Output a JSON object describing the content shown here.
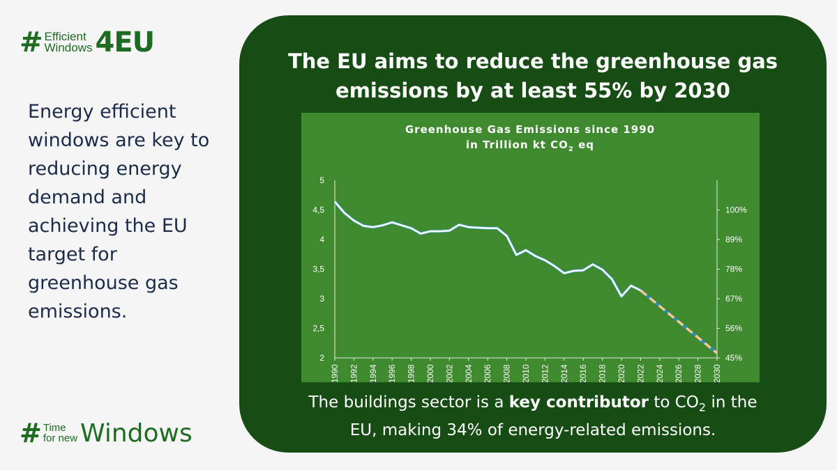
{
  "logo_top": {
    "hash": "#",
    "line1": "Efficient",
    "line2": "Windows",
    "big": "4EU"
  },
  "left_text": "Energy efficient windows are key to reducing energy demand and achieving the EU target for greenhouse gas emissions.",
  "logo_bottom": {
    "hash": "#",
    "line1": "Time",
    "line2": "for new",
    "big": "Windows"
  },
  "panel": {
    "title_line1": "The EU aims to reduce the greenhouse gas",
    "title_line2": "emissions by at least 55% by 2030",
    "footer_part1": "The buildings sector is a ",
    "footer_bold": "key contributor",
    "footer_part2": " to CO",
    "footer_sub": "2",
    "footer_part3": " in the",
    "footer_line2": "EU, making 34% of energy-related emissions."
  },
  "colors": {
    "panel_bg": "#174d14",
    "chart_bg": "#3f8a2f",
    "line": "#ffffff",
    "projection": "#f4c89a",
    "logo": "#1e6b22"
  },
  "chart_data": {
    "type": "line",
    "title_line1": "Greenhouse Gas Emissions since 1990",
    "title_line2_pre": "in Trillion kt CO",
    "title_line2_sub": "2",
    "title_line2_post": " eq",
    "ylim": [
      2,
      5
    ],
    "y_ticks": [
      "2",
      "2,5",
      "3",
      "3,5",
      "4",
      "4,5",
      "5"
    ],
    "y2_ticks": [
      "45%",
      "56%",
      "67%",
      "78%",
      "89%",
      "100%"
    ],
    "y2_values": [
      2.0,
      2.5,
      3.0,
      3.5,
      4.0,
      4.5
    ],
    "x_ticks": [
      "1990",
      "1992",
      "1994",
      "1996",
      "1998",
      "2000",
      "2002",
      "2004",
      "2006",
      "2008",
      "2010",
      "2012",
      "2014",
      "2016",
      "2018",
      "2020",
      "2022",
      "2024",
      "2026",
      "2028",
      "2030"
    ],
    "xlim": [
      1990,
      2030
    ],
    "series": [
      {
        "style": "solid",
        "x": [
          1990,
          1991,
          1992,
          1993,
          1994,
          1995,
          1996,
          1997,
          1998,
          1999,
          2000,
          2001,
          2002,
          2003,
          2004,
          2005,
          2006,
          2007,
          2008,
          2009,
          2010,
          2011,
          2012,
          2013,
          2014,
          2015,
          2016,
          2017,
          2018,
          2019,
          2020,
          2021,
          2022
        ],
        "values": [
          4.64,
          4.45,
          4.32,
          4.23,
          4.21,
          4.24,
          4.29,
          4.24,
          4.19,
          4.1,
          4.14,
          4.14,
          4.15,
          4.25,
          4.21,
          4.2,
          4.19,
          4.19,
          4.06,
          3.74,
          3.82,
          3.72,
          3.65,
          3.55,
          3.43,
          3.47,
          3.48,
          3.58,
          3.49,
          3.33,
          3.04,
          3.22,
          3.14
        ]
      },
      {
        "style": "dashed",
        "x": [
          2022,
          2030
        ],
        "values": [
          3.14,
          2.08
        ]
      }
    ]
  }
}
